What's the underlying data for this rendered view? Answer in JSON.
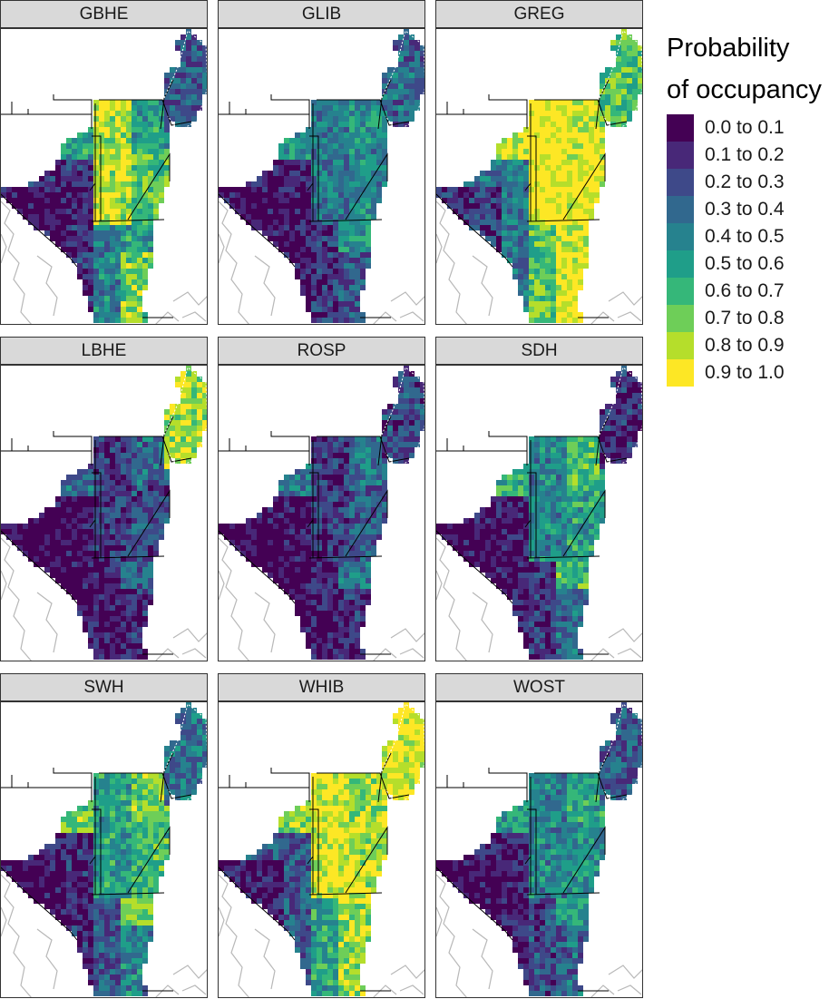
{
  "panels": [
    {
      "label": "GBHE",
      "pattern": [
        0.05,
        0.15,
        0.45,
        0.75,
        0.85,
        0.7,
        0.55,
        0.3
      ]
    },
    {
      "label": "GLIB",
      "pattern": [
        0.05,
        0.1,
        0.2,
        0.3,
        0.4,
        0.45,
        0.5,
        0.35
      ]
    },
    {
      "label": "GREG",
      "pattern": [
        0.2,
        0.4,
        0.7,
        0.95,
        0.98,
        0.95,
        0.9,
        0.7
      ]
    },
    {
      "label": "LBHE",
      "pattern": [
        0.02,
        0.05,
        0.1,
        0.15,
        0.2,
        0.25,
        0.35,
        0.85
      ]
    },
    {
      "label": "ROSP",
      "pattern": [
        0.02,
        0.05,
        0.1,
        0.15,
        0.2,
        0.3,
        0.4,
        0.25
      ]
    },
    {
      "label": "SDH",
      "pattern": [
        0.05,
        0.1,
        0.2,
        0.35,
        0.45,
        0.55,
        0.65,
        0.15
      ]
    },
    {
      "label": "SWH",
      "pattern": [
        0.05,
        0.15,
        0.3,
        0.45,
        0.55,
        0.65,
        0.75,
        0.4
      ]
    },
    {
      "label": "WHIB",
      "pattern": [
        0.1,
        0.3,
        0.55,
        0.8,
        0.9,
        0.85,
        0.8,
        0.95
      ]
    },
    {
      "label": "WOST",
      "pattern": [
        0.05,
        0.12,
        0.25,
        0.35,
        0.45,
        0.5,
        0.55,
        0.3
      ]
    }
  ],
  "legend": {
    "title_line1": "Probability",
    "title_line2": "of occupancy",
    "items": [
      {
        "label": "0.0 to 0.1",
        "color": "#440154"
      },
      {
        "label": "0.1 to 0.2",
        "color": "#482878"
      },
      {
        "label": "0.2 to 0.3",
        "color": "#3e4989"
      },
      {
        "label": "0.3 to 0.4",
        "color": "#31688e"
      },
      {
        "label": "0.4 to 0.5",
        "color": "#26828e"
      },
      {
        "label": "0.5 to 0.6",
        "color": "#1f9e89"
      },
      {
        "label": "0.6 to 0.7",
        "color": "#35b779"
      },
      {
        "label": "0.7 to 0.8",
        "color": "#6ece58"
      },
      {
        "label": "0.8 to 0.9",
        "color": "#b5de2b"
      },
      {
        "label": "0.9 to 1.0",
        "color": "#fde725"
      }
    ]
  }
}
